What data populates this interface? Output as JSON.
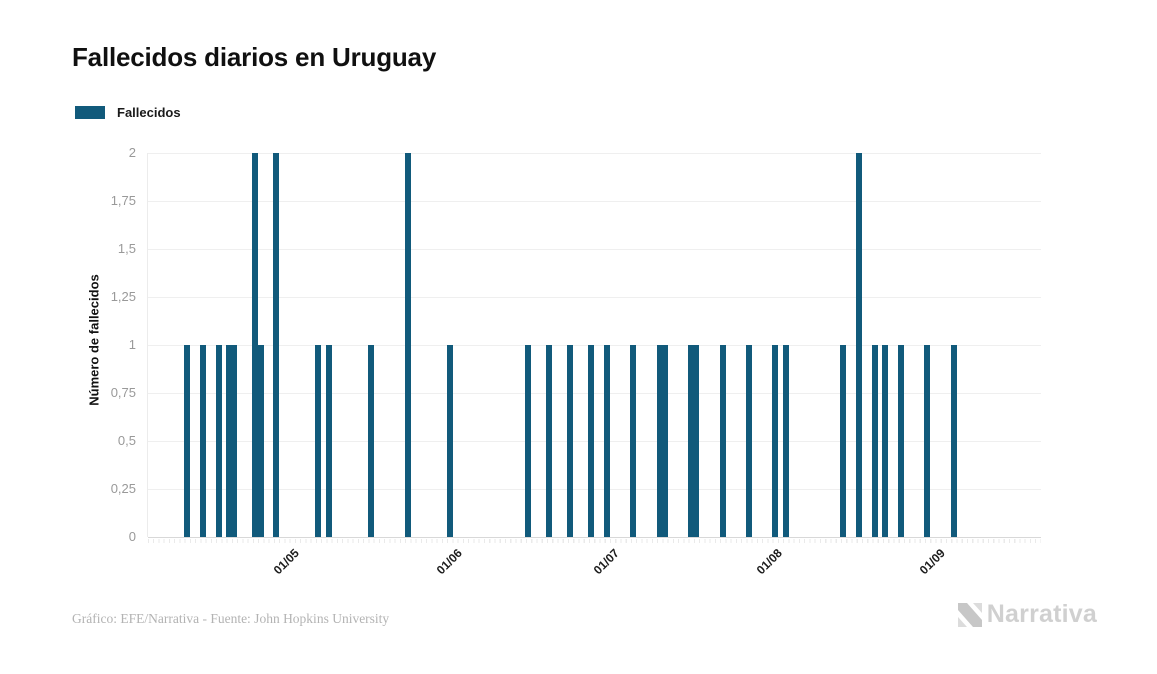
{
  "header": {
    "title": "Fallecidos diarios en Uruguay"
  },
  "legend": {
    "items": [
      {
        "label": "Fallecidos",
        "color": "#115a7b"
      }
    ]
  },
  "chart_data": {
    "type": "bar",
    "title": "Fallecidos diarios en Uruguay",
    "xlabel": "",
    "ylabel": "Número de fallecidos",
    "ylim": [
      0,
      2
    ],
    "y_tick_step": 0.25,
    "y_tick_labels": [
      "2",
      "1,75",
      "1,5",
      "1,25",
      "1",
      "0,75",
      "0,5",
      "0,25",
      "0"
    ],
    "x_tick_labels": [
      "01/05",
      "01/06",
      "01/07",
      "01/08",
      "01/09"
    ],
    "grid": true,
    "legend_position": "top-left",
    "bar_color": "#115a7b",
    "series": [
      {
        "name": "Fallecidos",
        "color": "#115a7b",
        "points": [
          {
            "d": "11/04",
            "v": 1
          },
          {
            "d": "14/04",
            "v": 1
          },
          {
            "d": "17/04",
            "v": 1
          },
          {
            "d": "19/04",
            "v": 1
          },
          {
            "d": "20/04",
            "v": 1
          },
          {
            "d": "24/04",
            "v": 2
          },
          {
            "d": "25/04",
            "v": 1
          },
          {
            "d": "28/04",
            "v": 2
          },
          {
            "d": "06/05",
            "v": 1
          },
          {
            "d": "08/05",
            "v": 1
          },
          {
            "d": "16/05",
            "v": 1
          },
          {
            "d": "23/05",
            "v": 2
          },
          {
            "d": "31/05",
            "v": 1
          },
          {
            "d": "15/06",
            "v": 1
          },
          {
            "d": "19/06",
            "v": 1
          },
          {
            "d": "23/06",
            "v": 1
          },
          {
            "d": "27/06",
            "v": 1
          },
          {
            "d": "30/06",
            "v": 1
          },
          {
            "d": "05/07",
            "v": 1
          },
          {
            "d": "10/07",
            "v": 1
          },
          {
            "d": "11/07",
            "v": 1
          },
          {
            "d": "16/07",
            "v": 1
          },
          {
            "d": "17/07",
            "v": 1
          },
          {
            "d": "22/07",
            "v": 1
          },
          {
            "d": "27/07",
            "v": 1
          },
          {
            "d": "01/08",
            "v": 1
          },
          {
            "d": "03/08",
            "v": 1
          },
          {
            "d": "14/08",
            "v": 1
          },
          {
            "d": "17/08",
            "v": 2
          },
          {
            "d": "20/08",
            "v": 1
          },
          {
            "d": "22/08",
            "v": 1
          },
          {
            "d": "25/08",
            "v": 1
          },
          {
            "d": "30/08",
            "v": 1
          },
          {
            "d": "04/09",
            "v": 1
          }
        ]
      }
    ]
  },
  "footer": {
    "credit": "Gráfico: EFE/Narrativa - Fuente: John Hopkins University",
    "logo_text": "Narrativa"
  }
}
